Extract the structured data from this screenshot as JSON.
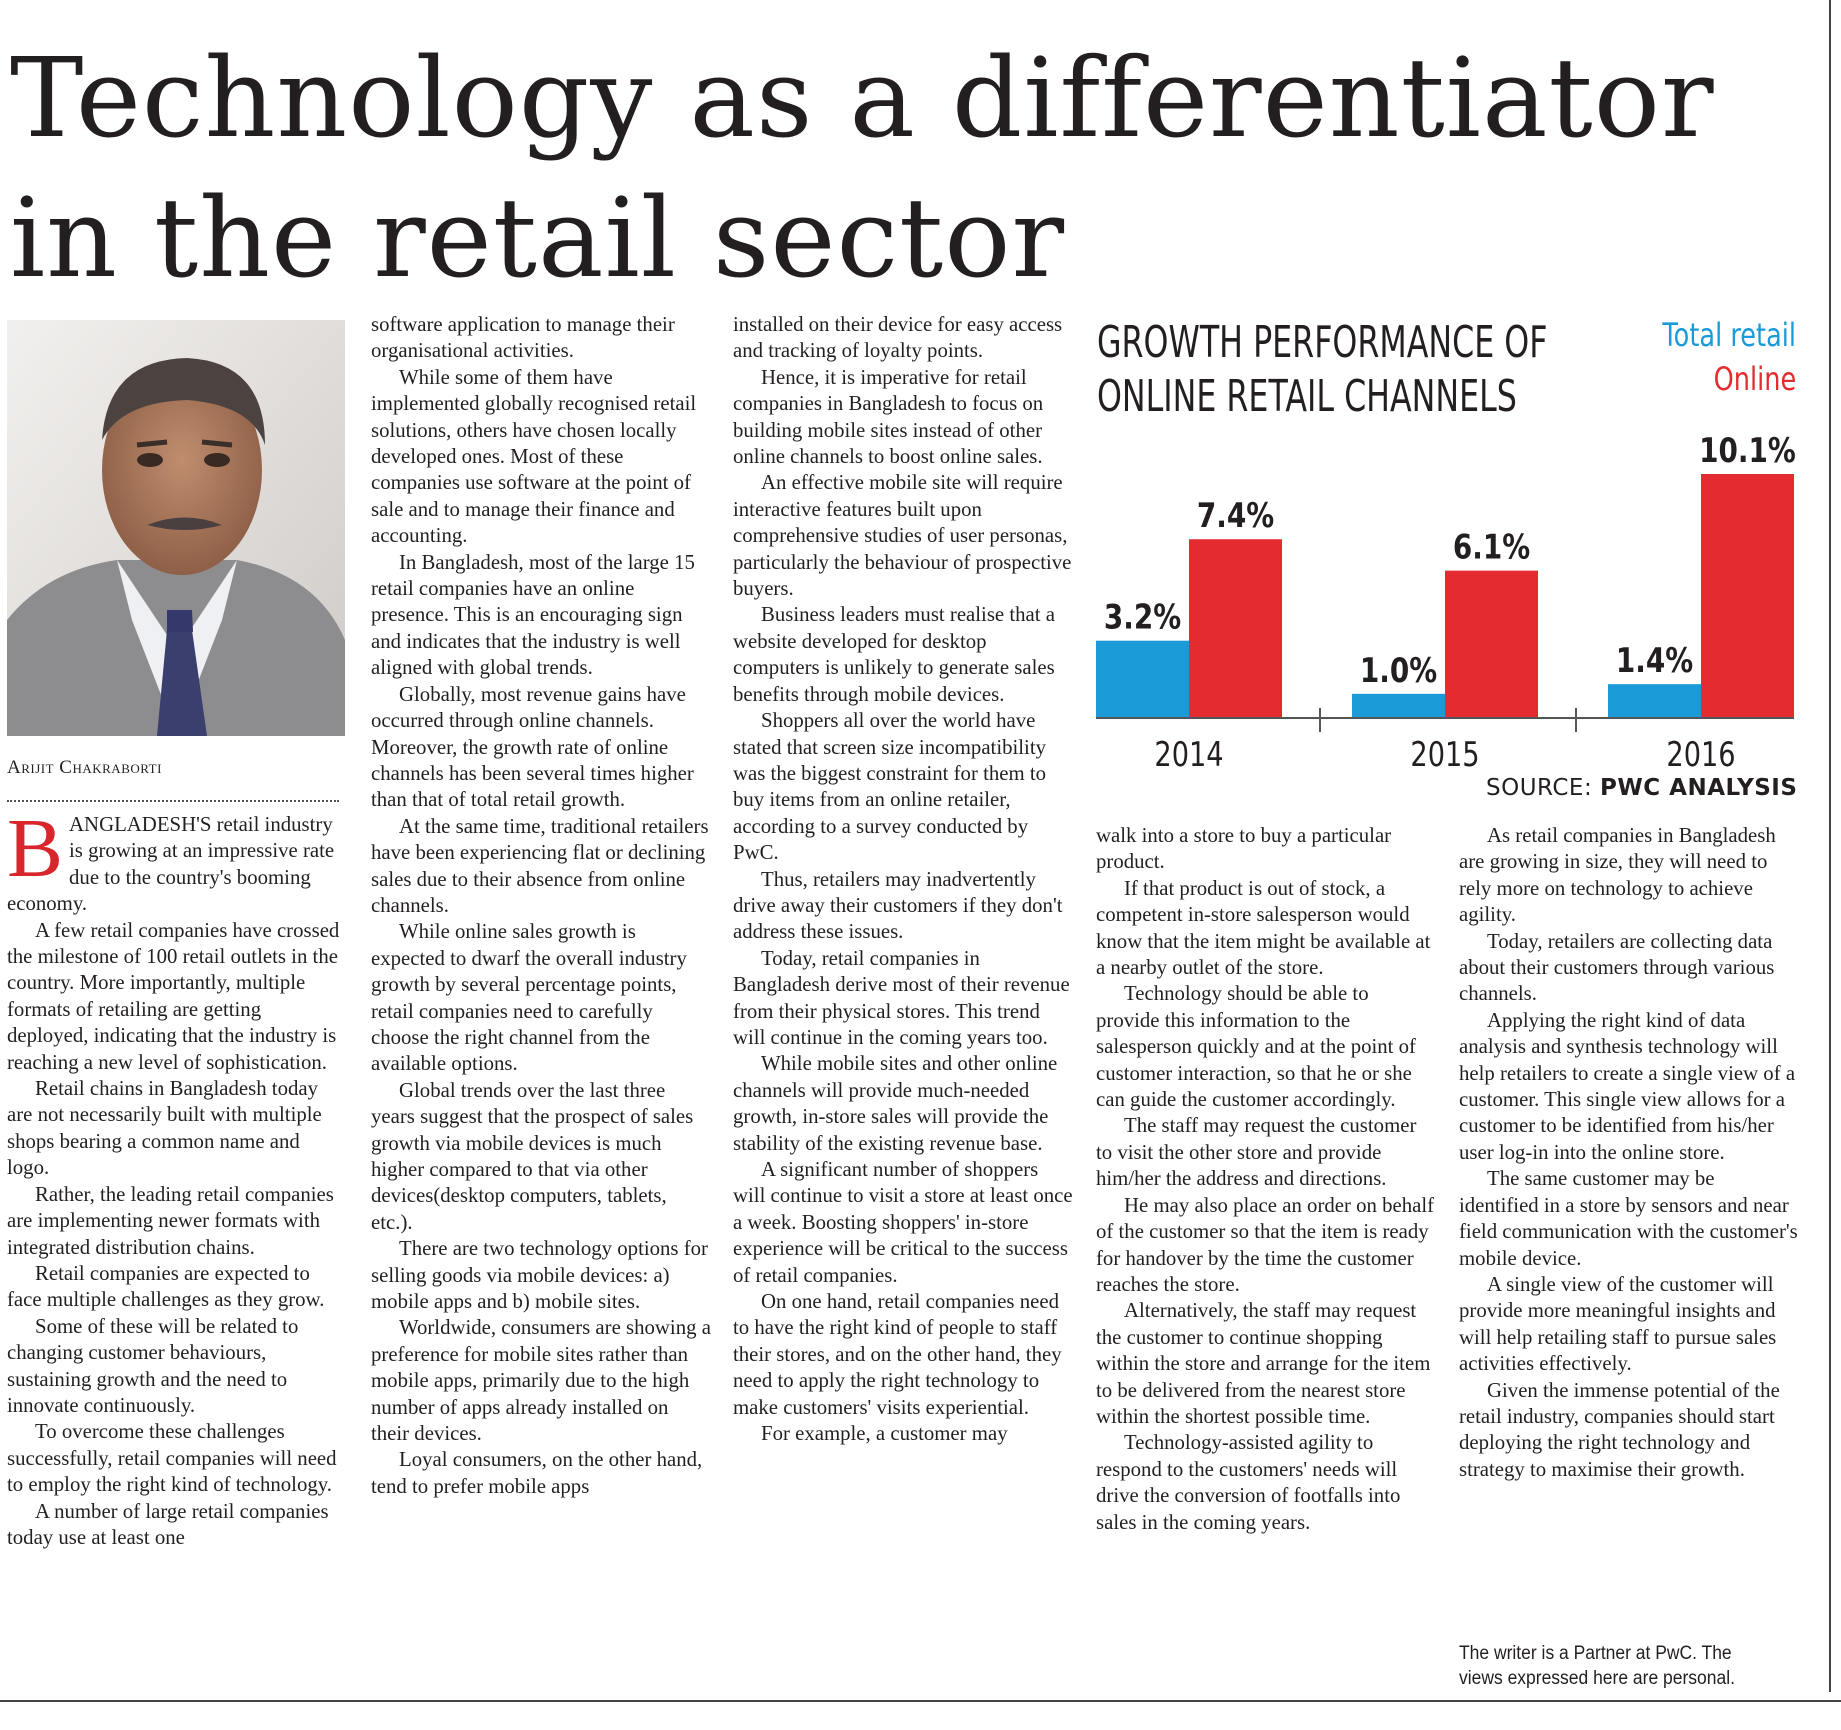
{
  "headline": [
    "Technology as a differentiator",
    "in the retail sector"
  ],
  "author": "Arijit Chakraborti",
  "columns": {
    "col1": [
      "ANGLADESH'S retail industry is growing at an impressive rate due to the country's booming economy.",
      "A few retail companies have crossed the milestone of 100 retail outlets in the country. More importantly, multiple formats of retailing are getting deployed, indicating that the industry is reaching a new level of sophistication.",
      "Retail chains in Bangladesh today are not necessarily built with multiple shops bearing a common name and logo.",
      "Rather, the leading retail companies are implementing newer formats with integrated distribution chains.",
      "Retail companies are expected to face multiple challenges as they grow.",
      "Some of these will be related to changing customer behaviours, sustaining growth and the need to innovate continuously.",
      "To overcome these challenges successfully, retail companies will need to employ the right kind of technology.",
      "A number of large retail companies today use at least one"
    ],
    "col2": [
      "software application to manage their organisational activities.",
      "While some of them have implemented globally recognised retail solutions, others have chosen locally developed ones. Most of these companies use software at the point of sale and to manage their finance and accounting.",
      "In Bangladesh, most of the large 15 retail companies have an online presence. This is an encouraging sign and indicates that the industry is well aligned with global trends.",
      "Globally, most revenue gains have occurred through online channels. Moreover, the growth rate of online channels has been several times higher than that of total retail growth.",
      "At the same time, traditional retailers have been experiencing flat or declining sales due to their absence from online channels.",
      "While online sales growth is expected to dwarf the overall industry growth by several percentage points, retail companies need to carefully choose the right channel from the available options.",
      "Global trends over the last three years suggest that the prospect of sales growth via mobile devices is much higher compared to that via other devices(desktop computers, tablets, etc.).",
      "There are two technology options for selling goods via mobile devices: a) mobile apps and b) mobile sites.",
      "Worldwide, consumers are showing a preference for mobile sites rather than mobile apps, primarily due to the high number of apps already installed on their devices.",
      "Loyal consumers, on the other hand, tend to prefer mobile apps"
    ],
    "col3": [
      "installed on their device for easy access and tracking of loyalty points.",
      "Hence, it is imperative for retail companies in Bangladesh to focus on building mobile sites instead of other online channels to boost online sales.",
      "An effective mobile site will require interactive features built upon comprehensive studies of user personas, particularly the behaviour of prospective buyers.",
      "Business leaders must realise that a website developed for desktop computers is unlikely to generate sales benefits through mobile devices.",
      "Shoppers all over the world have stated that screen size incompatibility was the biggest constraint for them to buy items from an online retailer, according to a survey conducted by PwC.",
      "Thus, retailers may inadvertently drive away their customers if they don't address these issues.",
      "Today, retail companies in Bangladesh derive most of their revenue from their physical stores. This trend will continue in the coming years too.",
      "While mobile sites and other online channels will provide much-needed growth, in-store sales will provide the stability of the existing revenue base.",
      "A significant number of shoppers will continue to visit a store at least once a week. Boosting shoppers' in-store experience will be critical to the success of retail companies.",
      "On one hand, retail companies need to have the right kind of people to staff their stores, and on the other hand, they need to apply the right technology to make customers' visits experiential.",
      "For example, a customer may"
    ],
    "col4": [
      "walk into a store to buy a particular product.",
      "If that product is out of stock, a competent in-store salesperson would know that the item might be available at a nearby outlet of the store.",
      "Technology should be able to provide this information to the salesperson quickly and at the point of customer interaction, so that he or she can guide the customer accordingly.",
      "The staff may request the customer to visit the other store and provide him/her the address and directions.",
      "He may also place an order on behalf of the customer so that the item is ready for handover by the time the customer reaches the store.",
      "Alternatively, the staff may request the customer to continue shopping within the store and arrange for the item to be delivered from the nearest store within the shortest possible time.",
      "Technology-assisted agility to respond to the customers' needs will drive the conversion of footfalls into sales in the coming years."
    ],
    "col5": [
      "As retail companies in Bangladesh are growing in size, they will need to rely more on technology to achieve agility.",
      "Today, retailers are collecting data about their customers through various channels.",
      "Applying the right kind of data analysis and synthesis technology will help retailers to create a single view of a customer. This single view allows for a customer to be identified from his/her user log-in into the online store.",
      "The same customer may be identified in a store by sensors and near field communication with the customer's mobile device.",
      "A single view of the customer will provide more meaningful insights and will help retailing staff to pursue sales activities effectively.",
      "Given the immense potential of the retail industry, companies should start deploying the right technology and strategy to maximise their growth."
    ]
  },
  "dropcap": "B",
  "footnote": "The writer is a Partner at PwC. The views expressed here are personal.",
  "chart_data": {
    "type": "bar",
    "title": [
      "GROWTH PERFORMANCE OF",
      "ONLINE RETAIL CHANNELS"
    ],
    "categories": [
      "2014",
      "2015",
      "2016"
    ],
    "series": [
      {
        "name": "Total retail",
        "color": "#1a9bd8",
        "values": [
          3.2,
          1.0,
          1.4
        ],
        "labels": [
          "3.2%",
          "1.0%",
          "1.4%"
        ]
      },
      {
        "name": "Online",
        "color": "#e42b2f",
        "values": [
          7.4,
          6.1,
          10.1
        ],
        "labels": [
          "7.4%",
          "6.1%",
          "10.1%"
        ]
      }
    ],
    "ylim": [
      0,
      10.1
    ],
    "grid": false,
    "legend_placement": "top-right",
    "source_label": "SOURCE:",
    "source_value": "PWC ANALYSIS"
  }
}
